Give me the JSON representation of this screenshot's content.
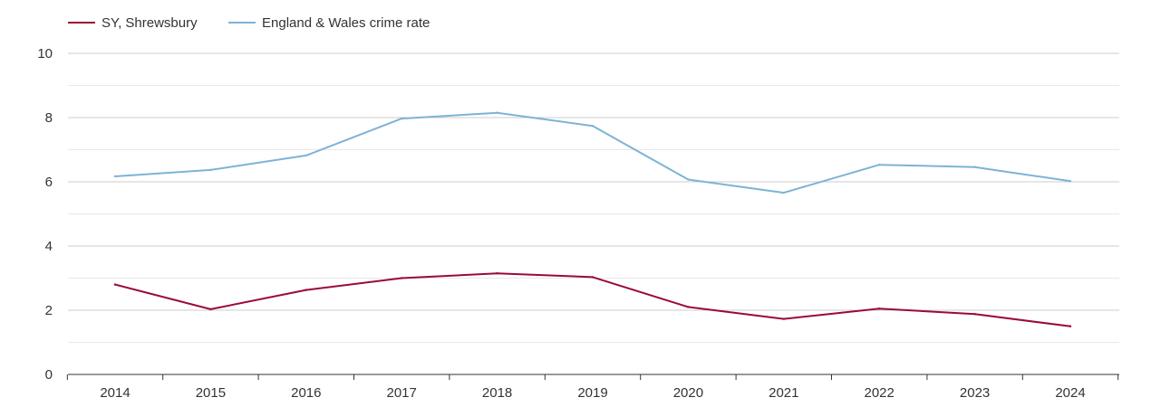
{
  "chart_data": {
    "type": "line",
    "title": "",
    "xlabel": "",
    "ylabel": "",
    "categories": [
      "2014",
      "2015",
      "2016",
      "2017",
      "2018",
      "2019",
      "2020",
      "2021",
      "2022",
      "2023",
      "2024"
    ],
    "series": [
      {
        "name": "SY, Shrewsbury",
        "color": "#9b0a35",
        "values": [
          2.8,
          2.03,
          2.63,
          3.0,
          3.15,
          3.03,
          2.1,
          1.73,
          2.05,
          1.88,
          1.5
        ]
      },
      {
        "name": "England & Wales crime rate",
        "color": "#7db3d6",
        "values": [
          6.17,
          6.37,
          6.82,
          7.97,
          8.15,
          7.74,
          6.07,
          5.66,
          6.53,
          6.46,
          6.02
        ]
      }
    ],
    "ylim": [
      0,
      10
    ],
    "yticks": [
      0,
      2,
      4,
      6,
      8,
      10
    ],
    "grid": true,
    "legend_position": "top-left"
  }
}
